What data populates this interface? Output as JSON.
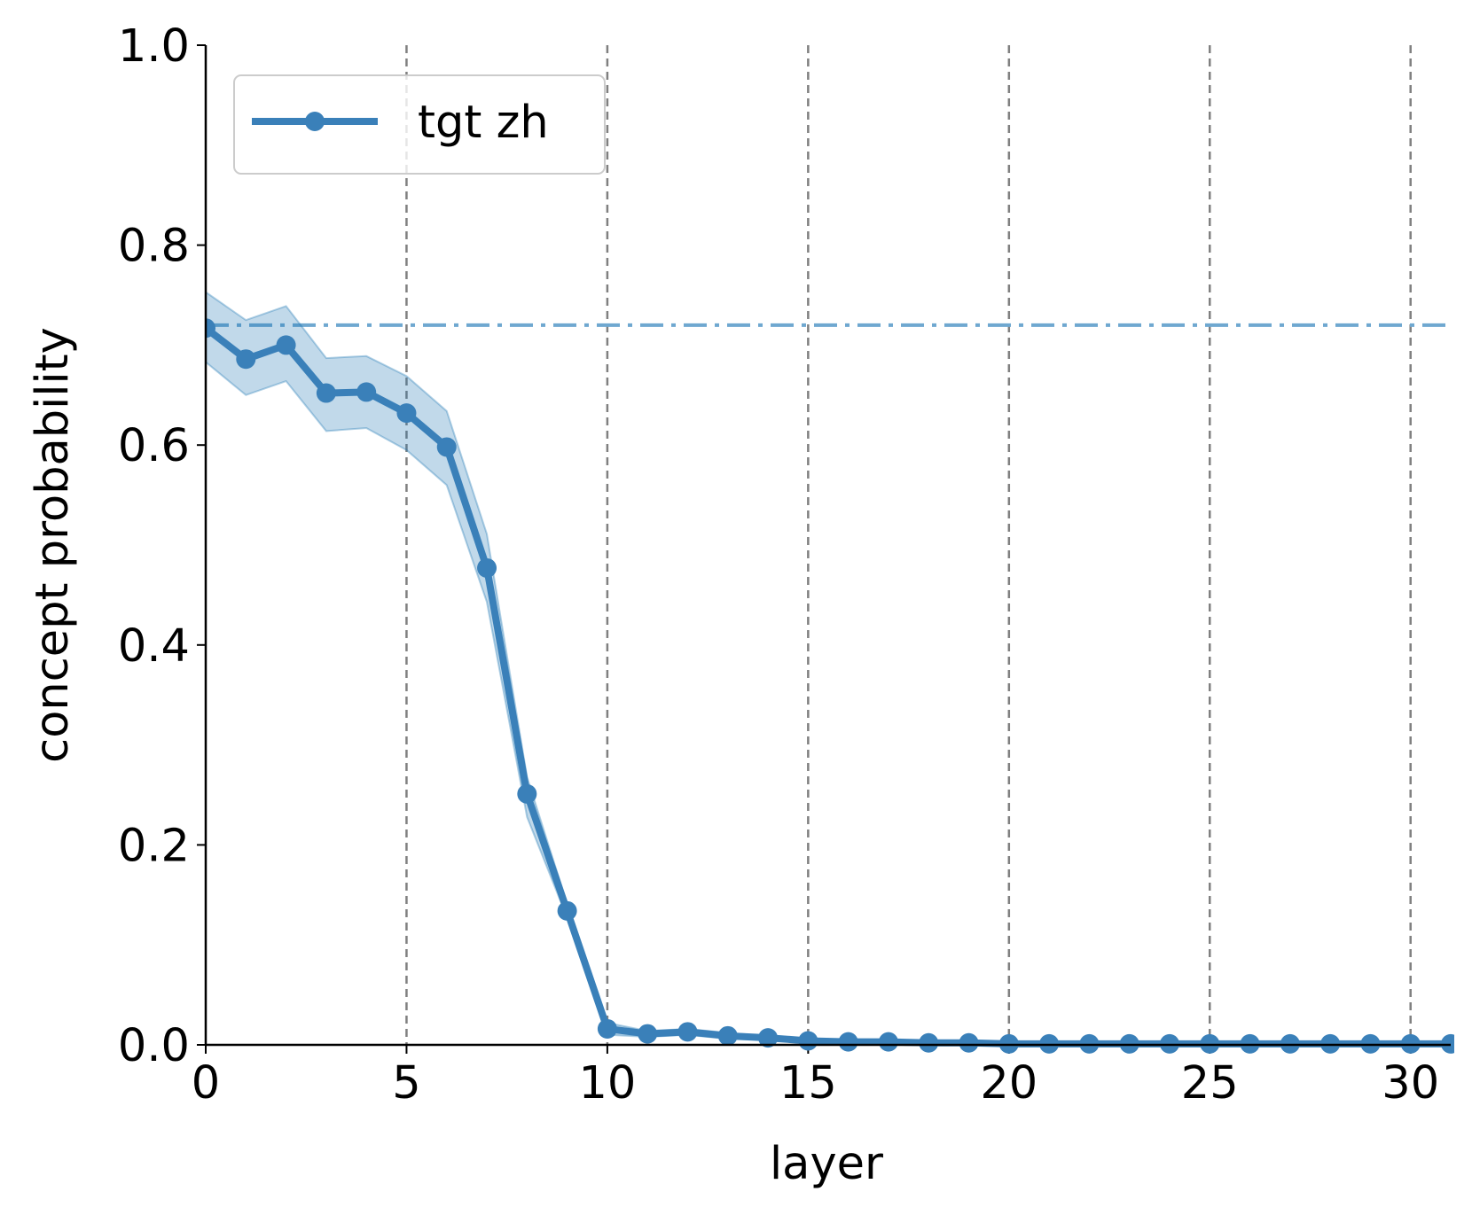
{
  "chart_data": {
    "type": "line",
    "xlabel": "layer",
    "ylabel": "concept probability",
    "x": [
      0,
      1,
      2,
      3,
      4,
      5,
      6,
      7,
      8,
      9,
      10,
      11,
      12,
      13,
      14,
      15,
      16,
      17,
      18,
      19,
      20,
      21,
      22,
      23,
      24,
      25,
      26,
      27,
      28,
      29,
      30,
      31
    ],
    "series": [
      {
        "name": "tgt zh",
        "color": "#3a80b9",
        "band_color": "#1f77b4",
        "values": [
          0.717,
          0.686,
          0.7,
          0.652,
          0.653,
          0.632,
          0.598,
          0.477,
          0.251,
          0.134,
          0.016,
          0.011,
          0.013,
          0.009,
          0.007,
          0.004,
          0.003,
          0.003,
          0.002,
          0.002,
          0.001,
          0.001,
          0.001,
          0.001,
          0.001,
          0.001,
          0.001,
          0.001,
          0.001,
          0.001,
          0.001,
          0.001
        ],
        "lower": [
          0.683,
          0.65,
          0.664,
          0.614,
          0.617,
          0.595,
          0.56,
          0.443,
          0.228,
          0.127,
          0.01,
          0.008,
          0.01,
          0.006,
          0.005,
          0.002,
          0.002,
          0.002,
          0.001,
          0.001,
          0.0,
          0.0,
          0.0,
          0.0,
          0.0,
          0.0,
          0.0,
          0.0,
          0.0,
          0.0,
          0.0,
          0.0
        ],
        "upper": [
          0.753,
          0.725,
          0.739,
          0.687,
          0.689,
          0.669,
          0.634,
          0.511,
          0.268,
          0.141,
          0.022,
          0.014,
          0.016,
          0.012,
          0.009,
          0.006,
          0.004,
          0.004,
          0.003,
          0.003,
          0.002,
          0.002,
          0.002,
          0.002,
          0.002,
          0.002,
          0.002,
          0.002,
          0.002,
          0.002,
          0.002,
          0.002
        ]
      }
    ],
    "reference_line": {
      "value": 0.72,
      "color": "#6fa8d0"
    },
    "xlim": [
      0,
      31
    ],
    "xticks": [
      0,
      5,
      10,
      15,
      20,
      25,
      30
    ],
    "ylim": [
      0,
      1
    ],
    "yticks": [
      {
        "value": 0,
        "label": "0.0"
      },
      0.2,
      0.4,
      0.6,
      0.8,
      {
        "value": 1,
        "label": "1.0"
      }
    ],
    "grid": "x",
    "legend": "upper left"
  }
}
